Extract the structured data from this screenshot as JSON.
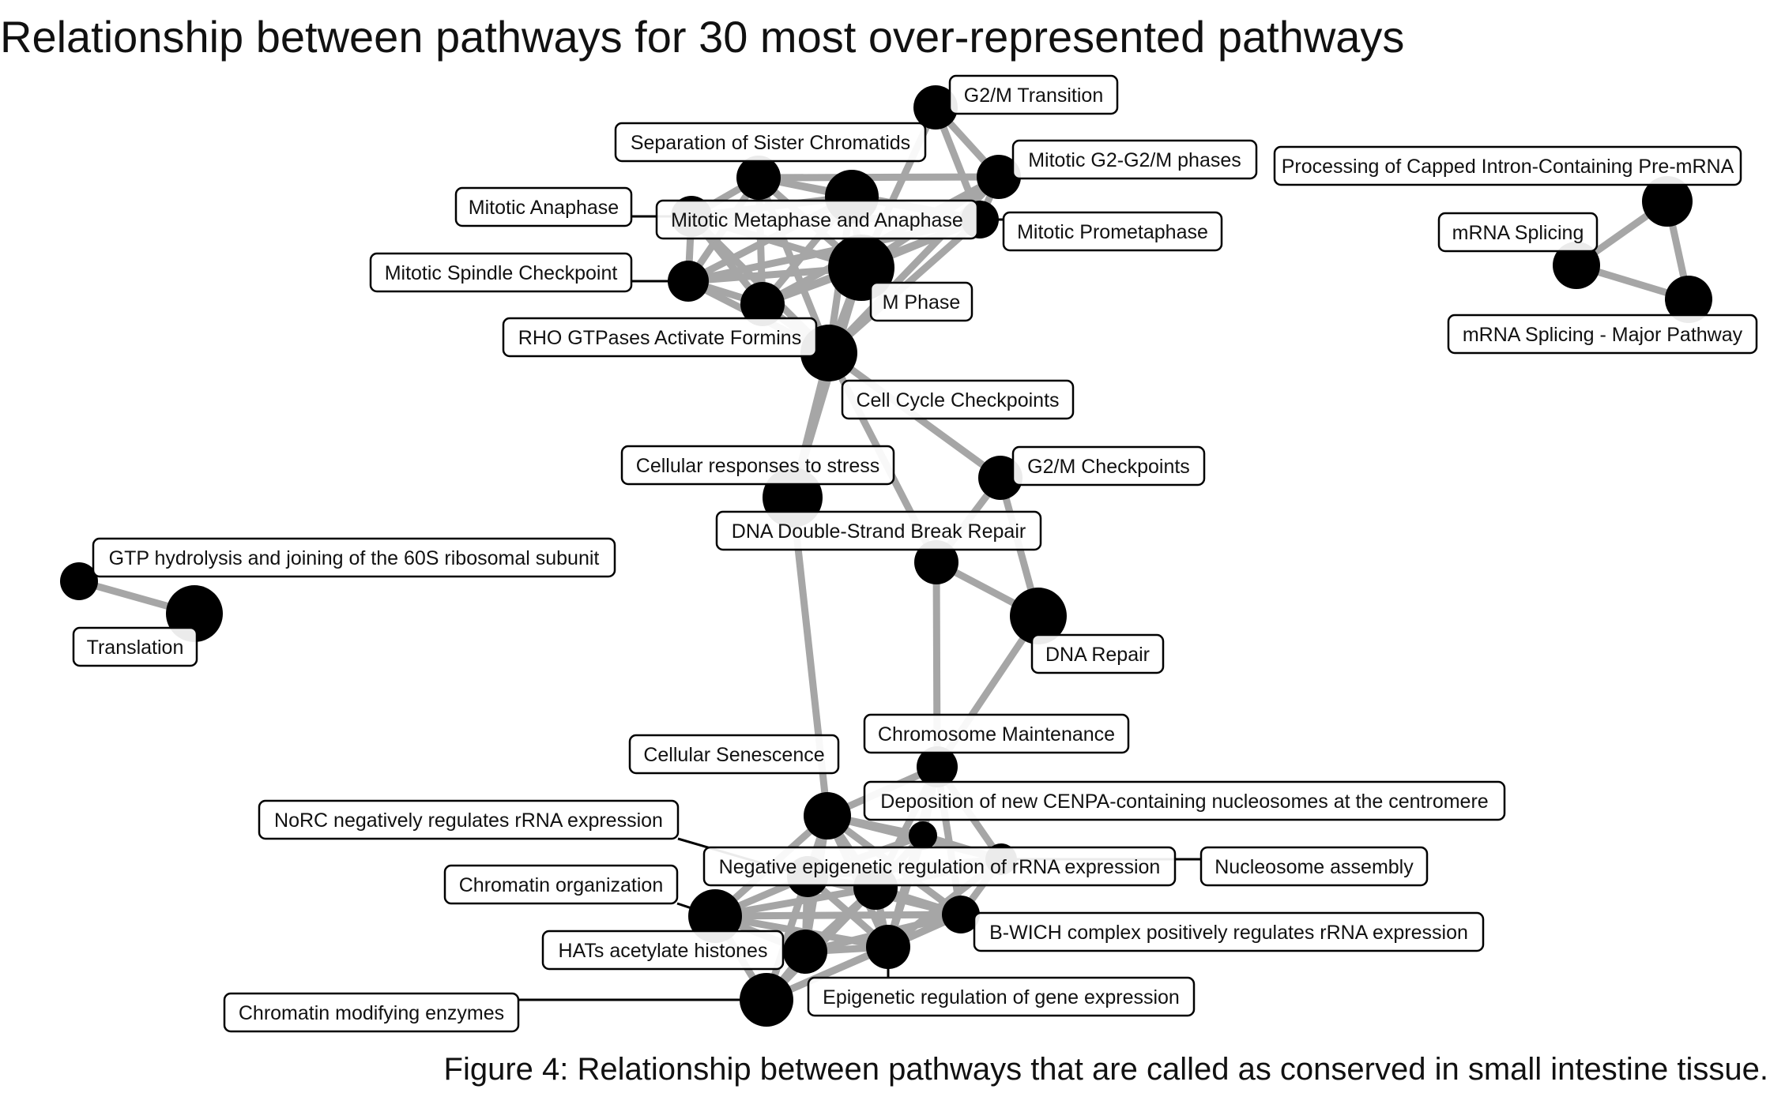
{
  "title": "Relationship between pathways for 30 most over-represented pathways",
  "caption": "Figure 4: Relationship between pathways that are called as conserved in small intestine tissue.",
  "colors": {
    "node": "#000000",
    "edge": "#a6a6a6",
    "leader": "#000000",
    "label_border": "#000000",
    "label_fill": "#ffffff"
  },
  "nodes": [
    {
      "id": "g2m_transition",
      "label": "G2/M Transition"
    },
    {
      "id": "sep_sister",
      "label": "Separation of Sister Chromatids"
    },
    {
      "id": "mitotic_g2",
      "label": "Mitotic G2-G2/M phases"
    },
    {
      "id": "mitotic_anaphase",
      "label": "Mitotic Anaphase"
    },
    {
      "id": "mitotic_metaphase",
      "label": "Mitotic Metaphase and Anaphase"
    },
    {
      "id": "mitotic_prometaphase",
      "label": "Mitotic Prometaphase"
    },
    {
      "id": "mitotic_spindle",
      "label": "Mitotic Spindle Checkpoint"
    },
    {
      "id": "m_phase",
      "label": "M Phase"
    },
    {
      "id": "rho_formins",
      "label": "RHO GTPases Activate Formins"
    },
    {
      "id": "cell_cycle_cp",
      "label": "Cell Cycle Checkpoints"
    },
    {
      "id": "cellular_stress",
      "label": "Cellular responses to stress"
    },
    {
      "id": "g2m_checkpoints",
      "label": "G2/M Checkpoints"
    },
    {
      "id": "dna_dsb",
      "label": "DNA Double-Strand Break Repair"
    },
    {
      "id": "dna_repair",
      "label": "DNA Repair"
    },
    {
      "id": "processing_capped",
      "label": "Processing of Capped Intron-Containing Pre-mRNA"
    },
    {
      "id": "mrna_splicing",
      "label": "mRNA Splicing"
    },
    {
      "id": "mrna_major",
      "label": "mRNA Splicing - Major Pathway"
    },
    {
      "id": "gtp_hydrolysis",
      "label": "GTP hydrolysis and joining of the 60S ribosomal subunit"
    },
    {
      "id": "translation",
      "label": "Translation"
    },
    {
      "id": "chromosome_maint",
      "label": "Chromosome Maintenance"
    },
    {
      "id": "cellular_senescence",
      "label": "Cellular Senescence"
    },
    {
      "id": "cenpa",
      "label": "Deposition of new CENPA-containing nucleosomes at the centromere"
    },
    {
      "id": "norc",
      "label": "NoRC negatively regulates rRNA expression"
    },
    {
      "id": "neg_epigenetic",
      "label": "Negative epigenetic regulation of rRNA expression"
    },
    {
      "id": "nucleosome_assembly",
      "label": "Nucleosome assembly"
    },
    {
      "id": "chromatin_org",
      "label": "Chromatin organization"
    },
    {
      "id": "b_wich",
      "label": "B-WICH complex positively regulates rRNA expression"
    },
    {
      "id": "hats",
      "label": "HATs acetylate histones"
    },
    {
      "id": "epigenetic_gene",
      "label": "Epigenetic regulation of gene expression"
    },
    {
      "id": "chromatin_enzymes",
      "label": "Chromatin modifying enzymes"
    }
  ],
  "edges": [
    [
      "g2m_transition",
      "mitotic_g2"
    ],
    [
      "g2m_transition",
      "m_phase"
    ],
    [
      "g2m_transition",
      "mitotic_prometaphase"
    ],
    [
      "mitotic_g2",
      "m_phase"
    ],
    [
      "mitotic_g2",
      "sep_sister"
    ],
    [
      "mitotic_g2",
      "mitotic_prometaphase"
    ],
    [
      "mitotic_g2",
      "rho_formins"
    ],
    [
      "mitotic_g2",
      "cell_cycle_cp"
    ],
    [
      "sep_sister",
      "mitotic_anaphase"
    ],
    [
      "sep_sister",
      "mitotic_metaphase"
    ],
    [
      "sep_sister",
      "m_phase"
    ],
    [
      "sep_sister",
      "mitotic_spindle"
    ],
    [
      "sep_sister",
      "mitotic_prometaphase"
    ],
    [
      "sep_sister",
      "rho_formins"
    ],
    [
      "sep_sister",
      "cell_cycle_cp"
    ],
    [
      "mitotic_anaphase",
      "mitotic_metaphase"
    ],
    [
      "mitotic_anaphase",
      "m_phase"
    ],
    [
      "mitotic_anaphase",
      "mitotic_spindle"
    ],
    [
      "mitotic_anaphase",
      "mitotic_prometaphase"
    ],
    [
      "mitotic_anaphase",
      "rho_formins"
    ],
    [
      "mitotic_anaphase",
      "cell_cycle_cp"
    ],
    [
      "mitotic_metaphase",
      "m_phase"
    ],
    [
      "mitotic_metaphase",
      "mitotic_spindle"
    ],
    [
      "mitotic_metaphase",
      "mitotic_prometaphase"
    ],
    [
      "mitotic_metaphase",
      "rho_formins"
    ],
    [
      "mitotic_metaphase",
      "cell_cycle_cp"
    ],
    [
      "mitotic_prometaphase",
      "m_phase"
    ],
    [
      "mitotic_prometaphase",
      "mitotic_spindle"
    ],
    [
      "mitotic_prometaphase",
      "rho_formins"
    ],
    [
      "mitotic_prometaphase",
      "cell_cycle_cp"
    ],
    [
      "mitotic_spindle",
      "m_phase"
    ],
    [
      "mitotic_spindle",
      "rho_formins"
    ],
    [
      "mitotic_spindle",
      "cell_cycle_cp"
    ],
    [
      "rho_formins",
      "m_phase"
    ],
    [
      "rho_formins",
      "cell_cycle_cp"
    ],
    [
      "m_phase",
      "cell_cycle_cp"
    ],
    [
      "m_phase",
      "cellular_stress"
    ],
    [
      "cell_cycle_cp",
      "g2m_checkpoints"
    ],
    [
      "cell_cycle_cp",
      "dna_dsb"
    ],
    [
      "cell_cycle_cp",
      "cellular_stress"
    ],
    [
      "g2m_checkpoints",
      "dna_repair"
    ],
    [
      "g2m_checkpoints",
      "dna_dsb"
    ],
    [
      "dna_dsb",
      "dna_repair"
    ],
    [
      "dna_dsb",
      "chromosome_maint"
    ],
    [
      "dna_repair",
      "chromosome_maint"
    ],
    [
      "cellular_stress",
      "cellular_senescence"
    ],
    [
      "processing_capped",
      "mrna_splicing"
    ],
    [
      "processing_capped",
      "mrna_major"
    ],
    [
      "mrna_splicing",
      "mrna_major"
    ],
    [
      "gtp_hydrolysis",
      "translation"
    ],
    [
      "chromosome_maint",
      "cenpa"
    ],
    [
      "chromosome_maint",
      "nucleosome_assembly"
    ],
    [
      "chromosome_maint",
      "neg_epigenetic"
    ],
    [
      "chromosome_maint",
      "epigenetic_gene"
    ],
    [
      "chromosome_maint",
      "b_wich"
    ],
    [
      "chromosome_maint",
      "cellular_senescence"
    ],
    [
      "cellular_senescence",
      "cenpa"
    ],
    [
      "cellular_senescence",
      "nucleosome_assembly"
    ],
    [
      "cellular_senescence",
      "norc"
    ],
    [
      "cellular_senescence",
      "neg_epigenetic"
    ],
    [
      "cellular_senescence",
      "chromatin_org"
    ],
    [
      "cellular_senescence",
      "hats"
    ],
    [
      "cellular_senescence",
      "epigenetic_gene"
    ],
    [
      "cellular_senescence",
      "chromatin_enzymes"
    ],
    [
      "cellular_senescence",
      "b_wich"
    ],
    [
      "cenpa",
      "nucleosome_assembly"
    ],
    [
      "cenpa",
      "neg_epigenetic"
    ],
    [
      "cenpa",
      "epigenetic_gene"
    ],
    [
      "cenpa",
      "norc"
    ],
    [
      "nucleosome_assembly",
      "neg_epigenetic"
    ],
    [
      "nucleosome_assembly",
      "epigenetic_gene"
    ],
    [
      "nucleosome_assembly",
      "b_wich"
    ],
    [
      "nucleosome_assembly",
      "norc"
    ],
    [
      "norc",
      "neg_epigenetic"
    ],
    [
      "norc",
      "chromatin_org"
    ],
    [
      "norc",
      "hats"
    ],
    [
      "norc",
      "epigenetic_gene"
    ],
    [
      "norc",
      "chromatin_enzymes"
    ],
    [
      "norc",
      "b_wich"
    ],
    [
      "neg_epigenetic",
      "chromatin_org"
    ],
    [
      "neg_epigenetic",
      "hats"
    ],
    [
      "neg_epigenetic",
      "epigenetic_gene"
    ],
    [
      "neg_epigenetic",
      "chromatin_enzymes"
    ],
    [
      "neg_epigenetic",
      "b_wich"
    ],
    [
      "chromatin_org",
      "hats"
    ],
    [
      "chromatin_org",
      "epigenetic_gene"
    ],
    [
      "chromatin_org",
      "chromatin_enzymes"
    ],
    [
      "chromatin_org",
      "b_wich"
    ],
    [
      "hats",
      "epigenetic_gene"
    ],
    [
      "hats",
      "chromatin_enzymes"
    ],
    [
      "hats",
      "b_wich"
    ],
    [
      "epigenetic_gene",
      "chromatin_enzymes"
    ],
    [
      "epigenetic_gene",
      "b_wich"
    ],
    [
      "b_wich",
      "chromatin_enzymes"
    ]
  ]
}
